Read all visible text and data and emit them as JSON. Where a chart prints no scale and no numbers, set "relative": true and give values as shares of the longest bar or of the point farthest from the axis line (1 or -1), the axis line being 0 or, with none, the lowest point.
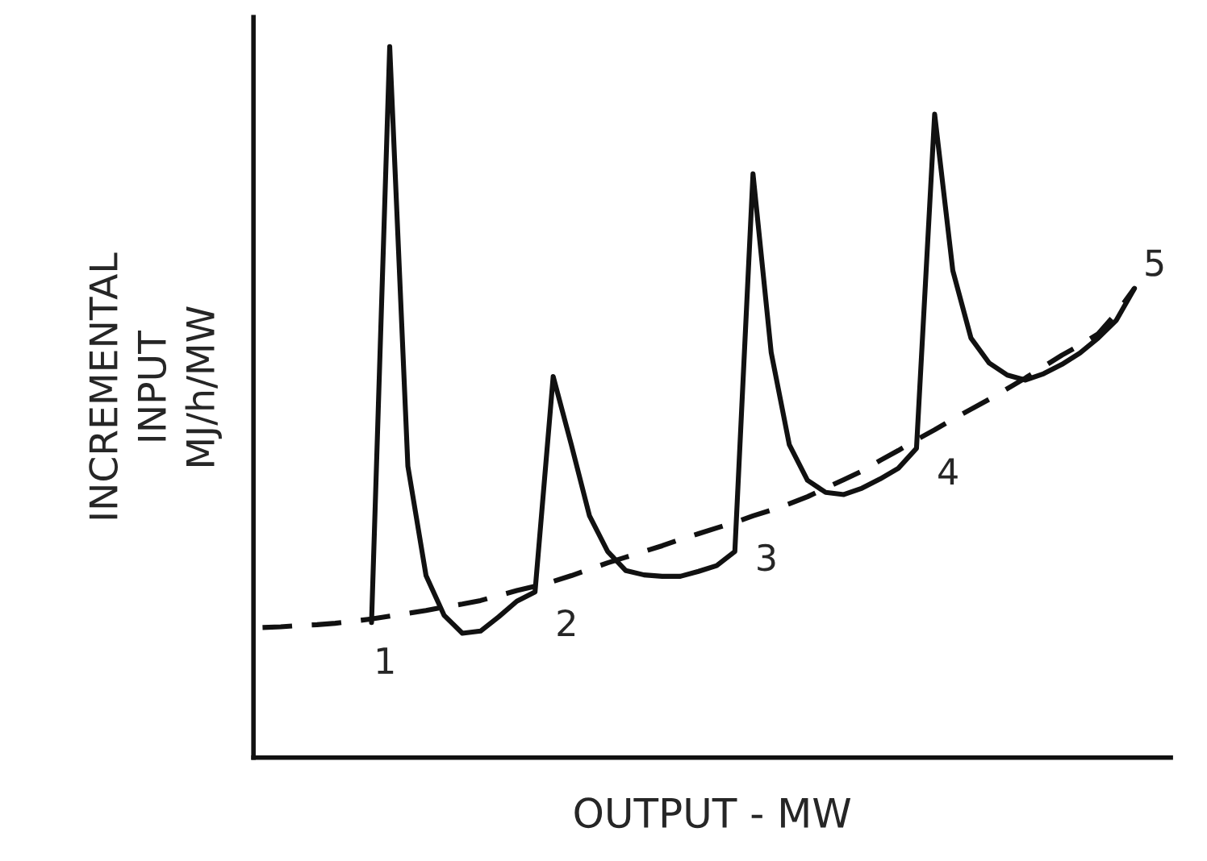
{
  "chart_data": {
    "type": "line",
    "relative": true,
    "xlabel": "OUTPUT - MW",
    "ylabel": "INCREMENTAL\nINPUT\nMJ/h/MW",
    "categories": [
      null,
      null,
      null,
      null,
      null,
      null,
      null,
      null,
      null,
      null,
      null,
      null,
      null,
      null,
      null,
      null,
      null,
      null,
      null,
      null,
      null,
      null,
      null,
      null,
      null,
      null,
      null,
      null,
      null,
      null,
      null,
      null,
      null,
      null,
      null,
      null,
      null,
      null,
      null,
      null,
      null,
      null,
      null,
      null,
      null,
      null,
      null,
      null,
      null,
      null
    ],
    "series": [
      {
        "color": "#111111",
        "line_style": "solid",
        "values": [
          null,
          null,
          null,
          null,
          null,
          null,
          0.19,
          1.0,
          0.41,
          0.256,
          0.2,
          0.175,
          0.178,
          0.198,
          0.22,
          0.233,
          0.536,
          0.44,
          0.34,
          0.29,
          0.263,
          0.257,
          0.255,
          0.255,
          0.262,
          0.27,
          0.29,
          0.821,
          0.57,
          0.44,
          0.39,
          0.373,
          0.37,
          0.379,
          0.392,
          0.407,
          0.435,
          0.905,
          0.685,
          0.59,
          0.555,
          0.538,
          0.531,
          0.54,
          0.553,
          0.569,
          0.59,
          0.615,
          0.66,
          null
        ]
      },
      {
        "color": "#111111",
        "line_style": "dashed",
        "values": [
          0.183,
          0.184,
          0.186,
          0.187,
          0.189,
          0.192,
          0.195,
          0.199,
          0.203,
          0.207,
          0.212,
          0.216,
          0.221,
          0.228,
          0.235,
          0.241,
          0.248,
          0.256,
          0.265,
          0.274,
          0.282,
          0.29,
          0.298,
          0.307,
          0.315,
          0.323,
          0.331,
          0.34,
          0.348,
          0.357,
          0.367,
          0.379,
          0.391,
          0.403,
          0.418,
          0.432,
          0.447,
          0.461,
          0.476,
          0.49,
          0.504,
          0.519,
          0.534,
          0.55,
          0.566,
          0.58,
          0.596,
          0.625,
          0.66,
          null
        ]
      }
    ],
    "annotations": [
      {
        "text": "1",
        "y": 0.195
      },
      {
        "text": "2",
        "y": 0.248
      },
      {
        "text": "3",
        "y": 0.34
      },
      {
        "text": "4",
        "y": 0.461
      },
      "5"
    ]
  }
}
